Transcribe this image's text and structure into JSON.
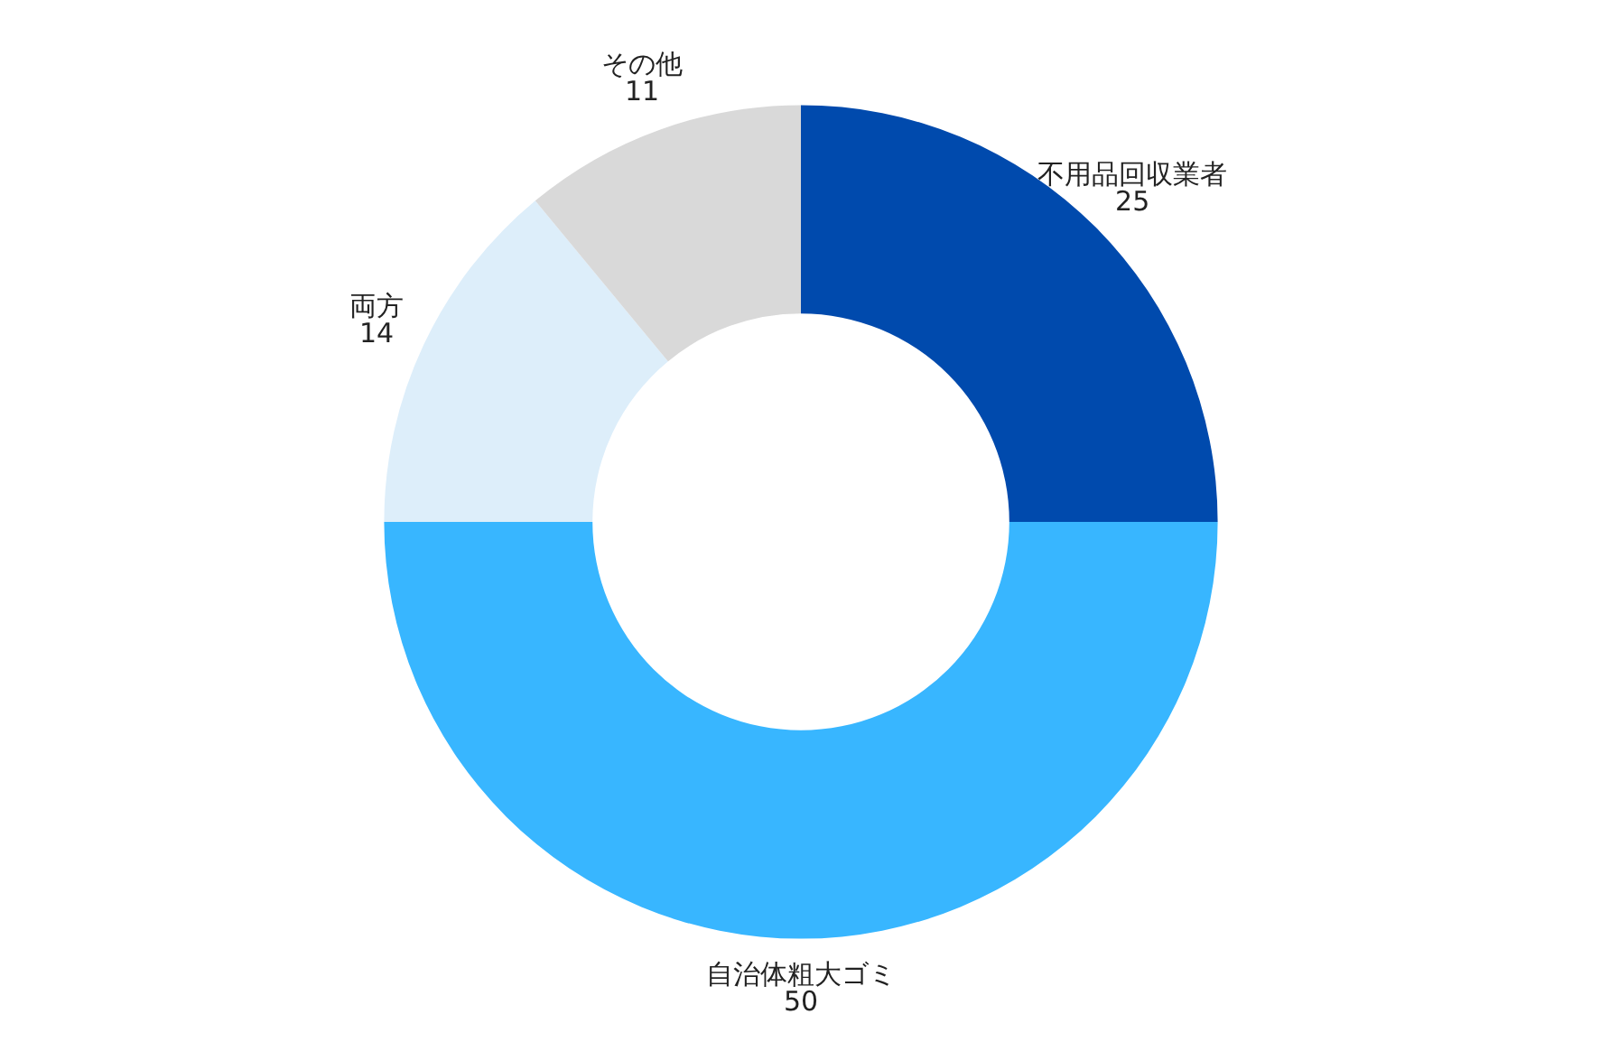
{
  "chart_data": {
    "type": "donut",
    "categories": [
      "不用品回収業者",
      "自治体粗大ゴミ",
      "両方",
      "その他"
    ],
    "values": [
      25,
      50,
      14,
      11
    ],
    "colors": [
      "#004aad",
      "#38b6ff",
      "#ddeefa",
      "#d9d9d9"
    ],
    "data_labels": true
  }
}
